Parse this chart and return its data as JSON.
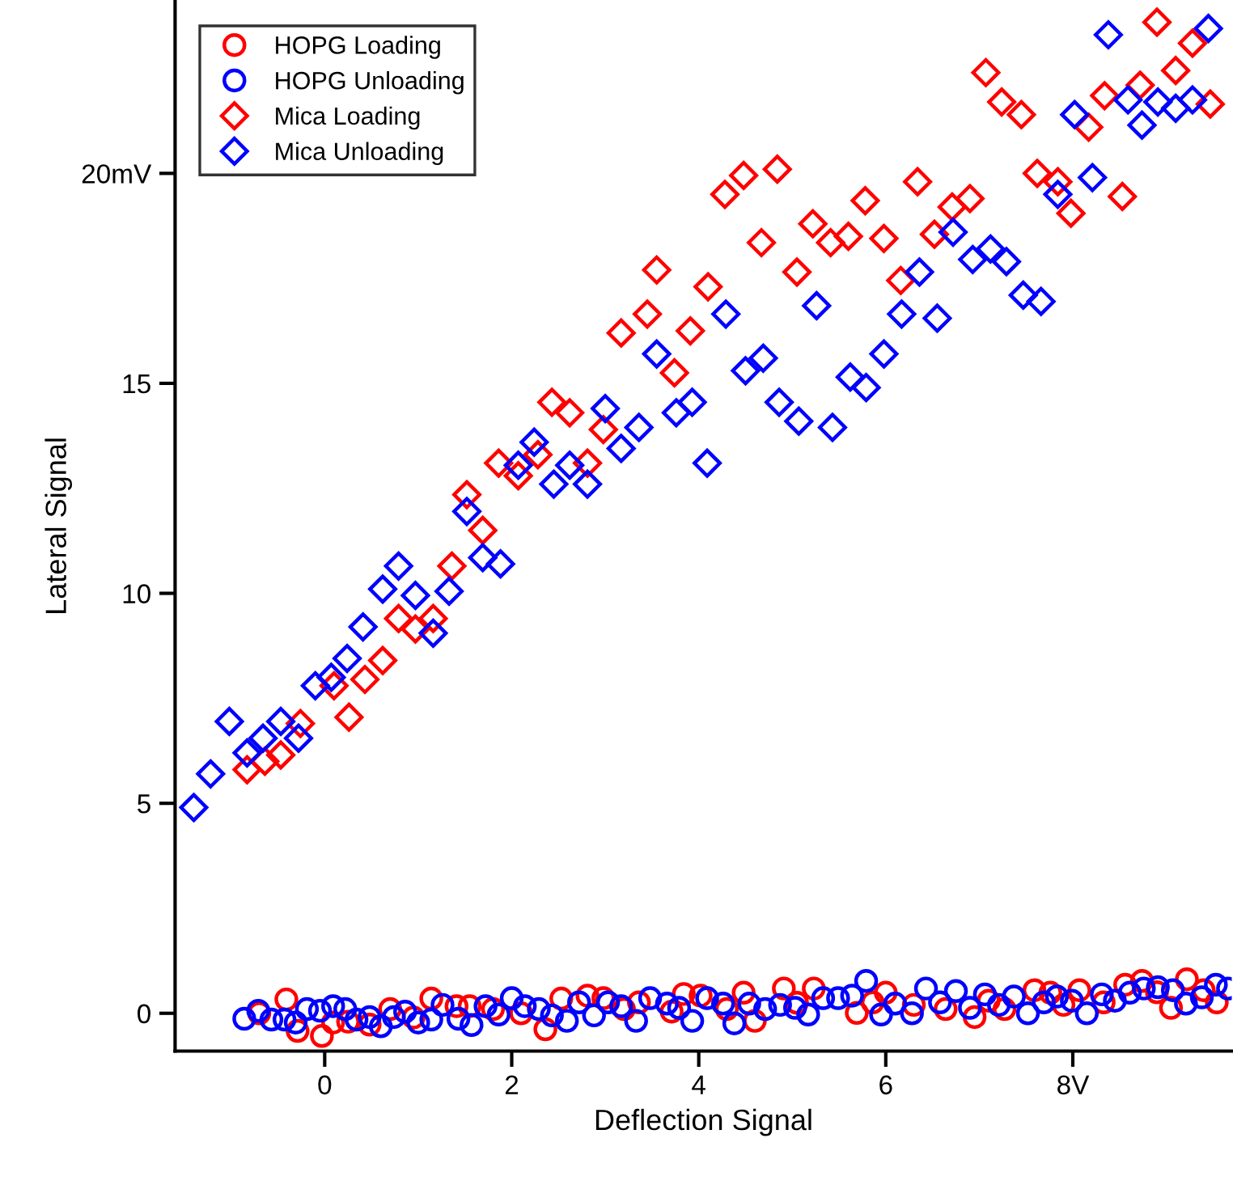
{
  "chart_data": {
    "type": "scatter",
    "xlabel": "Deflection Signal",
    "ylabel": "Lateral Signal",
    "xlim": [
      -1.6,
      9.7
    ],
    "ylim": [
      -0.9,
      24.1
    ],
    "xticks": [
      0,
      2,
      4,
      6,
      {
        "value": 8,
        "label": "8V"
      }
    ],
    "yticks": [
      0,
      5,
      10,
      15,
      {
        "value": 20,
        "label": "20mV"
      }
    ],
    "grid": false,
    "legend": "top left",
    "series": [
      {
        "name": "HOPG Loading",
        "color": "#ff0000",
        "marker": "circle",
        "x": [
          -0.7,
          -0.41,
          -0.29,
          -0.03,
          0.09,
          0.25,
          0.48,
          0.7,
          0.95,
          1.14,
          1.41,
          1.55,
          1.8,
          2.1,
          2.36,
          2.53,
          2.81,
          2.98,
          3.2,
          3.36,
          3.71,
          3.84,
          4.02,
          4.3,
          4.48,
          4.6,
          4.91,
          5.05,
          5.23,
          5.69,
          5.86,
          6.0,
          6.3,
          6.64,
          6.95,
          7.1,
          7.27,
          7.59,
          7.76,
          7.9,
          8.07,
          8.33,
          8.56,
          8.74,
          8.9,
          9.05,
          9.22,
          9.4,
          9.54
        ],
        "values": [
          0.0,
          0.33,
          -0.42,
          -0.54,
          -0.22,
          -0.2,
          -0.27,
          0.1,
          -0.1,
          0.35,
          0.17,
          0.17,
          0.1,
          0.0,
          -0.38,
          0.35,
          0.42,
          0.36,
          0.1,
          0.26,
          0.04,
          0.46,
          0.42,
          0.1,
          0.49,
          -0.18,
          0.59,
          0.25,
          0.59,
          0.01,
          0.26,
          0.49,
          0.2,
          0.1,
          -0.09,
          0.3,
          0.1,
          0.55,
          0.49,
          0.2,
          0.55,
          0.26,
          0.68,
          0.77,
          0.5,
          0.13,
          0.81,
          0.55,
          0.26
        ]
      },
      {
        "name": "HOPG Unloading",
        "color": "#0000ff",
        "marker": "circle",
        "x": [
          -0.86,
          -0.71,
          -0.57,
          -0.43,
          -0.31,
          -0.19,
          -0.05,
          0.09,
          0.22,
          0.34,
          0.48,
          0.6,
          0.74,
          0.86,
          1.0,
          1.14,
          1.26,
          1.43,
          1.57,
          1.72,
          1.86,
          2.0,
          2.14,
          2.29,
          2.43,
          2.59,
          2.72,
          2.88,
          3.03,
          3.17,
          3.33,
          3.48,
          3.66,
          3.79,
          3.93,
          4.09,
          4.26,
          4.38,
          4.54,
          4.71,
          4.87,
          5.03,
          5.17,
          5.33,
          5.49,
          5.64,
          5.79,
          5.95,
          6.1,
          6.28,
          6.43,
          6.58,
          6.75,
          6.9,
          7.06,
          7.21,
          7.37,
          7.52,
          7.69,
          7.83,
          7.99,
          8.15,
          8.31,
          8.45,
          8.61,
          8.76,
          8.91,
          9.07,
          9.21,
          9.38,
          9.53,
          9.66
        ],
        "values": [
          -0.13,
          0.06,
          -0.15,
          -0.15,
          -0.22,
          0.1,
          0.06,
          0.17,
          0.1,
          -0.15,
          -0.09,
          -0.31,
          -0.09,
          0.04,
          -0.22,
          -0.15,
          0.2,
          -0.13,
          -0.28,
          0.17,
          -0.03,
          0.36,
          0.17,
          0.1,
          -0.05,
          -0.18,
          0.26,
          -0.05,
          0.26,
          0.17,
          -0.18,
          0.36,
          0.23,
          0.13,
          -0.18,
          0.36,
          0.23,
          -0.24,
          0.23,
          0.1,
          0.2,
          0.13,
          -0.03,
          0.36,
          0.36,
          0.42,
          0.77,
          -0.03,
          0.23,
          0.0,
          0.59,
          0.26,
          0.53,
          0.13,
          0.45,
          0.2,
          0.4,
          0.0,
          0.26,
          0.4,
          0.3,
          0.0,
          0.45,
          0.3,
          0.49,
          0.59,
          0.62,
          0.55,
          0.23,
          0.38,
          0.68,
          0.59
        ]
      },
      {
        "name": "Mica Loading",
        "color": "#ff0000",
        "marker": "diamond",
        "x": [
          -0.83,
          -0.64,
          -0.47,
          -0.26,
          0.1,
          0.26,
          0.43,
          0.62,
          0.79,
          0.97,
          1.16,
          1.36,
          1.52,
          1.69,
          1.86,
          2.07,
          2.28,
          2.43,
          2.62,
          2.81,
          2.98,
          3.17,
          3.45,
          3.55,
          3.74,
          3.91,
          4.1,
          4.28,
          4.48,
          4.67,
          4.84,
          5.05,
          5.22,
          5.41,
          5.6,
          5.78,
          5.98,
          6.16,
          6.34,
          6.52,
          6.71,
          6.9,
          7.07,
          7.24,
          7.45,
          7.62,
          7.84,
          7.98,
          8.17,
          8.34,
          8.53,
          8.72,
          8.9,
          9.1,
          9.28,
          9.47
        ],
        "values": [
          5.8,
          6.0,
          6.15,
          6.9,
          7.8,
          7.05,
          7.95,
          8.4,
          9.4,
          9.15,
          9.4,
          10.65,
          12.35,
          11.5,
          13.1,
          12.8,
          13.3,
          14.55,
          14.3,
          13.1,
          13.9,
          16.2,
          16.65,
          17.7,
          15.25,
          16.25,
          17.3,
          19.5,
          19.95,
          18.35,
          20.1,
          17.65,
          18.8,
          18.35,
          18.5,
          19.35,
          18.45,
          17.45,
          19.8,
          18.55,
          19.2,
          19.4,
          22.4,
          21.7,
          21.4,
          20.0,
          19.8,
          19.05,
          21.1,
          21.85,
          19.45,
          22.1,
          23.6,
          22.45,
          23.1,
          21.65
        ]
      },
      {
        "name": "Mica Unloading",
        "color": "#0000ff",
        "marker": "diamond",
        "x": [
          -1.4,
          -1.22,
          -1.02,
          -0.83,
          -0.66,
          -0.47,
          -0.28,
          -0.1,
          0.07,
          0.24,
          0.41,
          0.62,
          0.79,
          0.97,
          1.16,
          1.33,
          1.52,
          1.69,
          1.88,
          2.07,
          2.24,
          2.45,
          2.62,
          2.81,
          3.0,
          3.17,
          3.36,
          3.55,
          3.76,
          3.93,
          4.09,
          4.29,
          4.5,
          4.69,
          4.86,
          5.07,
          5.26,
          5.43,
          5.62,
          5.79,
          5.98,
          6.17,
          6.36,
          6.55,
          6.72,
          6.93,
          7.12,
          7.29,
          7.47,
          7.66,
          7.84,
          8.02,
          8.21,
          8.38,
          8.59,
          8.74,
          8.91,
          9.1,
          9.28,
          9.45
        ],
        "values": [
          4.9,
          5.7,
          6.95,
          6.2,
          6.55,
          6.95,
          6.55,
          7.8,
          8.0,
          8.45,
          9.2,
          10.1,
          10.65,
          9.95,
          9.05,
          10.05,
          11.95,
          10.85,
          10.7,
          13.05,
          13.6,
          12.6,
          13.05,
          12.6,
          14.4,
          13.45,
          13.95,
          15.7,
          14.3,
          14.55,
          13.1,
          16.65,
          15.3,
          15.6,
          14.55,
          14.1,
          16.85,
          13.95,
          15.15,
          14.9,
          15.7,
          16.65,
          17.65,
          16.55,
          18.6,
          17.95,
          18.2,
          17.9,
          17.1,
          16.95,
          19.5,
          21.4,
          19.9,
          23.3,
          21.75,
          21.15,
          21.7,
          21.55,
          21.75,
          23.45
        ]
      }
    ]
  }
}
